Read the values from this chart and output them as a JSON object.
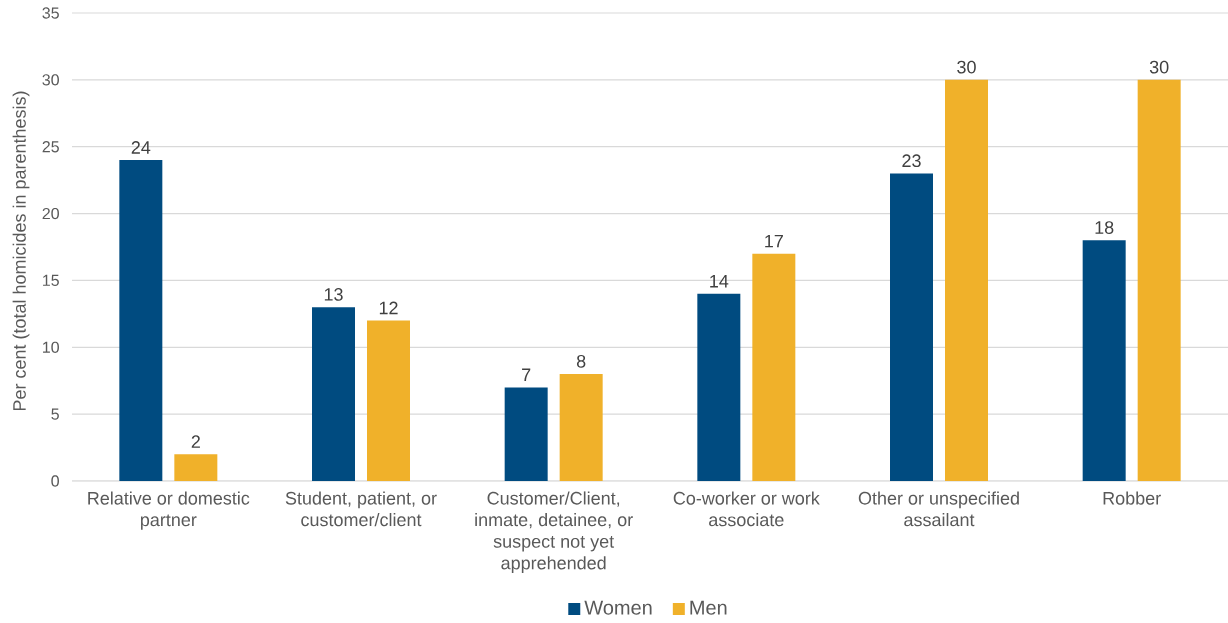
{
  "chart_data": {
    "type": "bar",
    "categories": [
      "Relative or domestic partner",
      "Student, patient, or customer/client",
      "Customer/Client, inmate, detainee, or suspect not yet apprehended",
      "Co-worker or work associate",
      "Other or unspecified assailant",
      "Robber"
    ],
    "series": [
      {
        "name": "Women",
        "color": "#004b80",
        "values": [
          24,
          13,
          7,
          14,
          23,
          18
        ]
      },
      {
        "name": "Men",
        "color": "#f0b12a",
        "values": [
          2,
          12,
          8,
          17,
          30,
          30
        ]
      }
    ],
    "ylabel": "Per cent (total homicides in parenthesis)",
    "ylim": [
      0,
      35
    ],
    "yticks": [
      0,
      5,
      10,
      15,
      20,
      25,
      30,
      35
    ],
    "grid": "y",
    "data_labels": true,
    "legend": "bottom"
  }
}
